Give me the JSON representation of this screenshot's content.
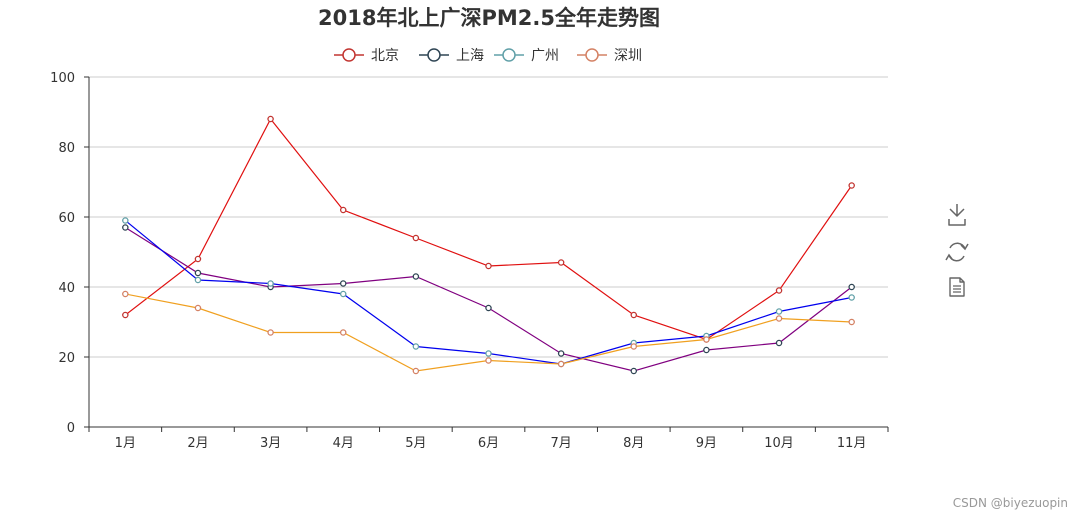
{
  "chart_data": {
    "type": "line",
    "title": "2018年北上广深PM2.5全年走势图",
    "categories": [
      "1月",
      "2月",
      "3月",
      "4月",
      "5月",
      "6月",
      "7月",
      "8月",
      "9月",
      "10月",
      "11月"
    ],
    "ylim": [
      0,
      100
    ],
    "yticks": [
      0,
      20,
      40,
      60,
      80,
      100
    ],
    "grid": "horizontal",
    "legend_position": "top-center",
    "series": [
      {
        "name": "北京",
        "legend_color": "#c23531",
        "line_color": "#e01010",
        "values": [
          32,
          48,
          88,
          62,
          54,
          46,
          47,
          32,
          25,
          39,
          69
        ]
      },
      {
        "name": "上海",
        "legend_color": "#2f4554",
        "line_color": "#800080",
        "values": [
          57,
          44,
          40,
          41,
          43,
          34,
          21,
          16,
          22,
          24,
          40
        ]
      },
      {
        "name": "广州",
        "legend_color": "#61a0a8",
        "line_color": "#0000ee",
        "values": [
          59,
          42,
          41,
          38,
          23,
          21,
          18,
          24,
          26,
          33,
          37
        ]
      },
      {
        "name": "深圳",
        "legend_color": "#d48265",
        "line_color": "#f0a020",
        "values": [
          38,
          34,
          27,
          27,
          16,
          19,
          18,
          23,
          25,
          31,
          30
        ]
      }
    ]
  },
  "toolbox": [
    {
      "name": "save-image-icon"
    },
    {
      "name": "restore-icon"
    },
    {
      "name": "data-view-icon"
    }
  ],
  "watermark": "CSDN @biyezuopin"
}
